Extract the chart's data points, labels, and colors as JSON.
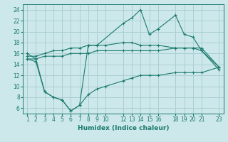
{
  "xlabel": "Humidex (Indice chaleur)",
  "x_ticks": [
    1,
    2,
    3,
    4,
    5,
    6,
    7,
    8,
    9,
    10,
    12,
    13,
    14,
    15,
    16,
    18,
    19,
    20,
    21,
    23
  ],
  "xlim": [
    0.5,
    23.5
  ],
  "ylim": [
    5,
    25
  ],
  "y_ticks": [
    6,
    8,
    10,
    12,
    14,
    16,
    18,
    20,
    22,
    24
  ],
  "background_color": "#cde8ea",
  "grid_color": "#aacfd3",
  "line_color": "#1a7a6e",
  "lines": [
    {
      "x": [
        1,
        2,
        3,
        4,
        5,
        6,
        7,
        8,
        9,
        12,
        13,
        14,
        15,
        16,
        18,
        19,
        20,
        21,
        23
      ],
      "y": [
        16,
        15,
        9,
        8,
        7.5,
        5.5,
        6.5,
        17.5,
        17.5,
        21.5,
        22.5,
        24.0,
        19.5,
        20.5,
        23.0,
        19.5,
        19.0,
        16.5,
        13.5
      ]
    },
    {
      "x": [
        1,
        2,
        3,
        4,
        5,
        6,
        7,
        8,
        9,
        10,
        12,
        13,
        14,
        15,
        16,
        18,
        19,
        20,
        21,
        23
      ],
      "y": [
        15.5,
        15.5,
        16.0,
        16.5,
        16.5,
        17.0,
        17.0,
        17.5,
        17.5,
        17.5,
        18.0,
        18.0,
        17.5,
        17.5,
        17.5,
        17.0,
        17.0,
        17.0,
        17.0,
        13.5
      ]
    },
    {
      "x": [
        1,
        2,
        3,
        4,
        5,
        6,
        7,
        8,
        9,
        10,
        12,
        13,
        14,
        15,
        16,
        18,
        19,
        20,
        21,
        23
      ],
      "y": [
        15.0,
        15.0,
        15.5,
        15.5,
        15.5,
        16.0,
        16.0,
        16.0,
        16.5,
        16.5,
        16.5,
        16.5,
        16.5,
        16.5,
        16.5,
        17.0,
        17.0,
        17.0,
        16.5,
        13.0
      ]
    },
    {
      "x": [
        1,
        2,
        3,
        4,
        5,
        6,
        7,
        8,
        9,
        10,
        12,
        13,
        14,
        15,
        16,
        18,
        19,
        20,
        21,
        23
      ],
      "y": [
        15.0,
        14.5,
        9.0,
        8.0,
        7.5,
        5.5,
        6.5,
        8.5,
        9.5,
        10.0,
        11.0,
        11.5,
        12.0,
        12.0,
        12.0,
        12.5,
        12.5,
        12.5,
        12.5,
        13.5
      ]
    }
  ]
}
